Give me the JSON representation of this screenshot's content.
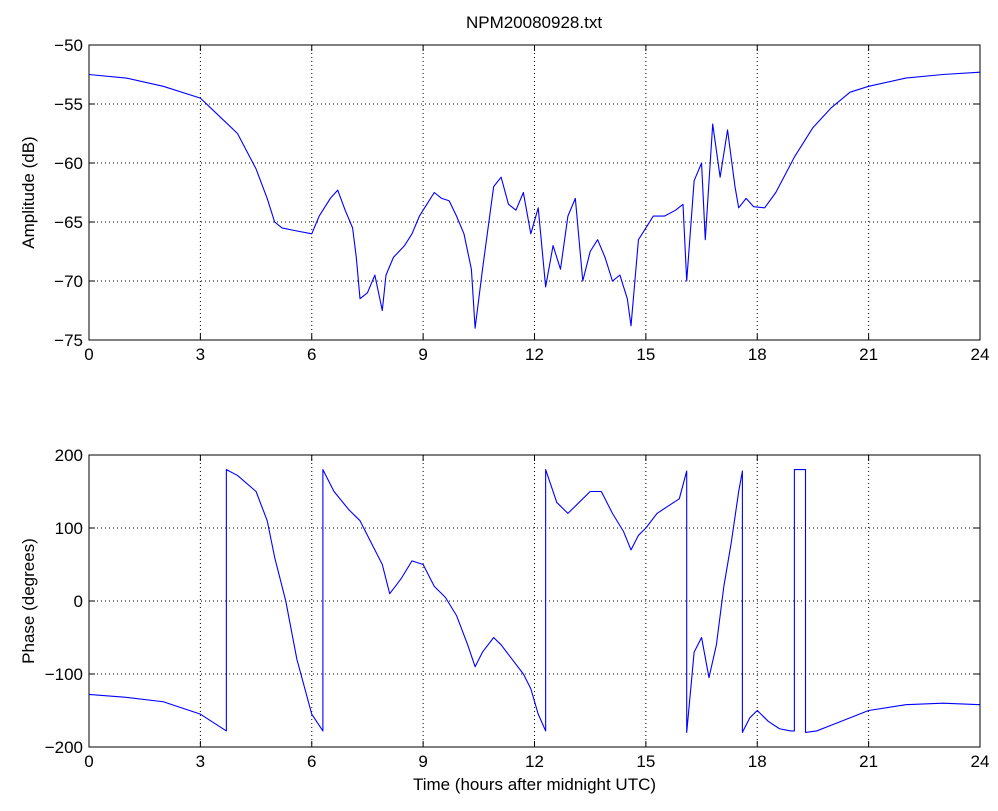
{
  "figure": {
    "title": "NPM20080928.txt",
    "background": "#ffffff",
    "line_color": "#0000ff"
  },
  "chart_data": [
    {
      "type": "line",
      "title": "NPM20080928.txt",
      "xlabel": "",
      "ylabel": "Amplitude (dB)",
      "xlim": [
        0,
        24
      ],
      "ylim": [
        -75,
        -50
      ],
      "xticks": [
        0,
        3,
        6,
        9,
        12,
        15,
        18,
        21,
        24
      ],
      "yticks": [
        -75,
        -70,
        -65,
        -60,
        -55,
        -50
      ],
      "ytick_labels": [
        "−75",
        "−70",
        "−65",
        "−60",
        "−55",
        "−50"
      ],
      "grid": true,
      "series": [
        {
          "color": "#0000ff",
          "x": [
            0,
            1,
            2,
            3,
            3.5,
            4,
            4.5,
            4.8,
            5,
            5.2,
            5.5,
            6,
            6.2,
            6.5,
            6.7,
            6.9,
            7.1,
            7.2,
            7.3,
            7.5,
            7.7,
            7.9,
            8.0,
            8.2,
            8.5,
            8.7,
            8.9,
            9.1,
            9.3,
            9.5,
            9.7,
            9.9,
            10.1,
            10.3,
            10.4,
            10.6,
            10.9,
            11.1,
            11.3,
            11.5,
            11.7,
            11.9,
            12.1,
            12.3,
            12.5,
            12.7,
            12.9,
            13.1,
            13.3,
            13.5,
            13.7,
            13.9,
            14.1,
            14.3,
            14.5,
            14.6,
            14.8,
            15.0,
            15.2,
            15.5,
            15.8,
            16.0,
            16.1,
            16.3,
            16.5,
            16.6,
            16.8,
            17.0,
            17.2,
            17.4,
            17.5,
            17.7,
            17.9,
            18.2,
            18.5,
            19,
            19.5,
            20,
            20.5,
            21,
            22,
            23,
            24
          ],
          "y": [
            -52.5,
            -52.8,
            -53.5,
            -54.5,
            -56,
            -57.5,
            -60.5,
            -63,
            -65,
            -65.5,
            -65.7,
            -66,
            -64.5,
            -63,
            -62.3,
            -64,
            -65.5,
            -68,
            -71.5,
            -71,
            -69.5,
            -72.5,
            -69.5,
            -68,
            -67,
            -66,
            -64.5,
            -63.5,
            -62.5,
            -63,
            -63.2,
            -64.5,
            -66,
            -69,
            -74,
            -69,
            -62,
            -61.2,
            -63.5,
            -64,
            -62.5,
            -66,
            -63.8,
            -70.5,
            -67,
            -69,
            -64.5,
            -63,
            -70,
            -67.5,
            -66.5,
            -68,
            -70,
            -69.5,
            -71.5,
            -73.8,
            -66.5,
            -65.5,
            -64.5,
            -64.5,
            -64,
            -63.5,
            -70,
            -61.5,
            -60,
            -66.5,
            -56.7,
            -61.2,
            -57.2,
            -62,
            -63.8,
            -63,
            -63.7,
            -63.8,
            -62.5,
            -59.5,
            -57,
            -55.3,
            -54,
            -53.5,
            -52.8,
            -52.5,
            -52.3
          ]
        }
      ]
    },
    {
      "type": "line",
      "title": "",
      "xlabel": "Time (hours after midnight UTC)",
      "ylabel": "Phase (degrees)",
      "xlim": [
        0,
        24
      ],
      "ylim": [
        -200,
        200
      ],
      "xticks": [
        0,
        3,
        6,
        9,
        12,
        15,
        18,
        21,
        24
      ],
      "yticks": [
        -200,
        -100,
        0,
        100,
        200
      ],
      "ytick_labels": [
        "−200",
        "−100",
        "0",
        "100",
        "200"
      ],
      "grid": true,
      "series": [
        {
          "color": "#0000ff",
          "x": [
            0,
            1,
            2,
            3,
            3.7,
            3.7,
            4.0,
            4.5,
            4.8,
            5.0,
            5.3,
            5.6,
            6.0,
            6.3,
            6.3,
            6.6,
            7.0,
            7.3,
            7.6,
            7.9,
            8.1,
            8.4,
            8.7,
            9.0,
            9.3,
            9.6,
            9.9,
            10.2,
            10.4,
            10.6,
            10.9,
            11.1,
            11.4,
            11.7,
            11.9,
            12.1,
            12.3,
            12.3,
            12.6,
            12.9,
            13.2,
            13.5,
            13.8,
            14.1,
            14.4,
            14.6,
            14.8,
            15.0,
            15.3,
            15.6,
            15.9,
            16.1,
            16.1,
            16.3,
            16.5,
            16.7,
            16.9,
            17.1,
            17.3,
            17.5,
            17.6,
            17.6,
            17.8,
            18.0,
            18.3,
            18.6,
            18.9,
            19.0,
            19.0,
            19.3,
            19.3,
            19.6,
            20,
            21,
            22,
            23,
            24
          ],
          "y": [
            -128,
            -132,
            -138,
            -155,
            -178,
            180,
            172,
            150,
            110,
            60,
            0,
            -80,
            -155,
            -178,
            180,
            150,
            125,
            110,
            80,
            50,
            10,
            30,
            55,
            50,
            20,
            5,
            -20,
            -60,
            -90,
            -70,
            -50,
            -60,
            -80,
            -100,
            -120,
            -155,
            -178,
            180,
            135,
            120,
            135,
            150,
            150,
            120,
            95,
            70,
            90,
            100,
            120,
            130,
            140,
            178,
            -180,
            -70,
            -50,
            -105,
            -60,
            20,
            80,
            150,
            178,
            -180,
            -160,
            -150,
            -165,
            -175,
            -178,
            -178,
            180,
            180,
            -180,
            -178,
            -170,
            -150,
            -142,
            -140,
            -142
          ]
        }
      ]
    }
  ]
}
